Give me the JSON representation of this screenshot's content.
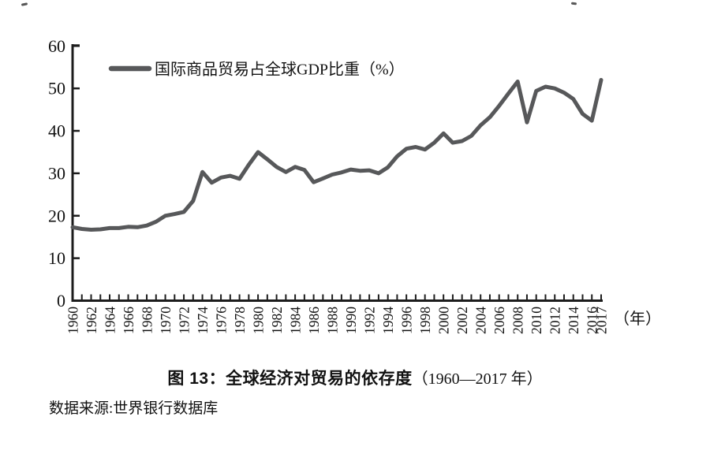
{
  "page": {
    "background": "#ffffff"
  },
  "legend": {
    "label": "国际商品贸易占全球GDP比重（%）"
  },
  "axes": {
    "x_unit": "（年）",
    "y_tick_labels": [
      "0",
      "10",
      "20",
      "30",
      "40",
      "50",
      "60"
    ]
  },
  "caption": {
    "title": "图 13：全球经济对贸易的依存度",
    "range": "（1960—2017 年）",
    "source": "数据来源:世界银行数据库"
  },
  "chart_data": {
    "type": "line",
    "title": "图 13：全球经济对贸易的依存度（1960—2017 年）",
    "xlabel": "（年）",
    "ylabel": "",
    "ylim": [
      0,
      60
    ],
    "ytick_step": 10,
    "grid": false,
    "legend_position": "top-left-inside",
    "line_color": "#57585a",
    "axis_color": "#1c1c1c",
    "xticks_minor_every_year": true,
    "xticks_labeled": [
      1960,
      1962,
      1964,
      1966,
      1968,
      1970,
      1972,
      1974,
      1976,
      1978,
      1980,
      1982,
      1984,
      1986,
      1988,
      1990,
      1992,
      1994,
      1996,
      1998,
      2000,
      2002,
      2004,
      2006,
      2008,
      2010,
      2012,
      2014,
      2016,
      2017
    ],
    "series": [
      {
        "name": "国际商品贸易占全球GDP比重（%）",
        "x": [
          1960,
          1961,
          1962,
          1963,
          1964,
          1965,
          1966,
          1967,
          1968,
          1969,
          1970,
          1971,
          1972,
          1973,
          1974,
          1975,
          1976,
          1977,
          1978,
          1979,
          1980,
          1981,
          1982,
          1983,
          1984,
          1985,
          1986,
          1987,
          1988,
          1989,
          1990,
          1991,
          1992,
          1993,
          1994,
          1995,
          1996,
          1997,
          1998,
          1999,
          2000,
          2001,
          2002,
          2003,
          2004,
          2005,
          2006,
          2007,
          2008,
          2009,
          2010,
          2011,
          2012,
          2013,
          2014,
          2015,
          2016,
          2017
        ],
        "values": [
          17.3,
          16.9,
          16.7,
          16.8,
          17.1,
          17.1,
          17.4,
          17.3,
          17.7,
          18.6,
          20.0,
          20.4,
          20.9,
          23.5,
          30.3,
          27.8,
          29.0,
          29.4,
          28.7,
          32.0,
          35.0,
          33.3,
          31.5,
          30.3,
          31.5,
          30.8,
          27.9,
          28.8,
          29.7,
          30.2,
          30.9,
          30.6,
          30.7,
          30.0,
          31.4,
          34.0,
          35.8,
          36.2,
          35.6,
          37.2,
          39.4,
          37.2,
          37.6,
          38.8,
          41.3,
          43.2,
          45.9,
          48.8,
          51.6,
          42.0,
          49.4,
          50.4,
          50.0,
          49.0,
          47.5,
          44.0,
          42.4,
          52.0
        ]
      }
    ]
  }
}
